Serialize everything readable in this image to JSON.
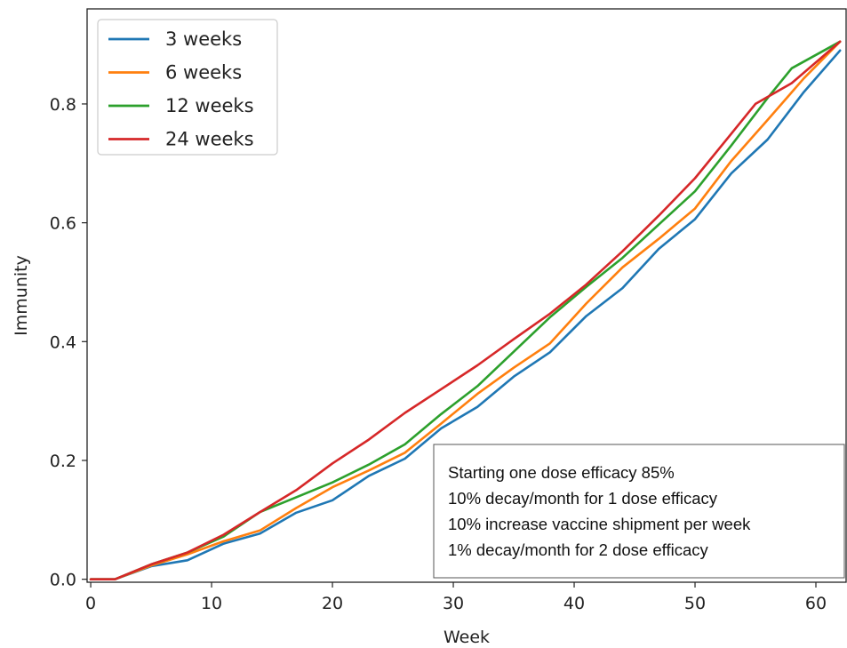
{
  "chart_data": {
    "type": "line",
    "xlabel": "Week",
    "ylabel": "Immunity",
    "xlim": [
      -0.3,
      62.5
    ],
    "ylim": [
      -0.005,
      0.96
    ],
    "xticks": [
      0,
      10,
      20,
      30,
      40,
      50,
      60
    ],
    "yticks": [
      0.0,
      0.2,
      0.4,
      0.6,
      0.8
    ],
    "xtick_labels": [
      "0",
      "10",
      "20",
      "30",
      "40",
      "50",
      "60"
    ],
    "ytick_labels": [
      "0.0",
      "0.2",
      "0.4",
      "0.6",
      "0.8"
    ],
    "grid": false,
    "legend_position": "top-left",
    "series": [
      {
        "name": "3 weeks",
        "color": "#1f77b4",
        "x": [
          0,
          2,
          5,
          8,
          11,
          14,
          17,
          20,
          23,
          26,
          29,
          32,
          35,
          38,
          41,
          44,
          47,
          50,
          53,
          56,
          59,
          62
        ],
        "y": [
          0.0,
          0.0,
          0.022,
          0.032,
          0.06,
          0.077,
          0.112,
          0.133,
          0.174,
          0.203,
          0.254,
          0.29,
          0.341,
          0.382,
          0.443,
          0.49,
          0.556,
          0.606,
          0.683,
          0.74,
          0.82,
          0.89
        ]
      },
      {
        "name": "6 weeks",
        "color": "#ff7f0e",
        "x": [
          0,
          2,
          5,
          8,
          11,
          14,
          17,
          20,
          23,
          26,
          29,
          32,
          35,
          38,
          41,
          44,
          47,
          50,
          53,
          56,
          59,
          62
        ],
        "y": [
          0.0,
          0.0,
          0.023,
          0.042,
          0.064,
          0.082,
          0.12,
          0.155,
          0.183,
          0.213,
          0.262,
          0.312,
          0.356,
          0.397,
          0.464,
          0.525,
          0.573,
          0.624,
          0.704,
          0.773,
          0.843,
          0.905
        ]
      },
      {
        "name": "12 weeks",
        "color": "#2ca02c",
        "x": [
          0,
          2,
          5,
          8,
          11,
          14,
          17,
          20,
          23,
          26,
          29,
          32,
          35,
          38,
          41,
          44,
          47,
          50,
          53,
          56,
          58,
          62
        ],
        "y": [
          0.0,
          0.0,
          0.025,
          0.045,
          0.072,
          0.113,
          0.138,
          0.163,
          0.193,
          0.227,
          0.278,
          0.325,
          0.383,
          0.441,
          0.492,
          0.541,
          0.597,
          0.653,
          0.73,
          0.81,
          0.86,
          0.905
        ]
      },
      {
        "name": "24 weeks",
        "color": "#d62728",
        "x": [
          0,
          2,
          5,
          8,
          11,
          14,
          17,
          20,
          23,
          26,
          29,
          32,
          35,
          38,
          41,
          44,
          47,
          50,
          53,
          55,
          58,
          62
        ],
        "y": [
          0.0,
          0.0,
          0.025,
          0.045,
          0.075,
          0.113,
          0.15,
          0.195,
          0.235,
          0.28,
          0.32,
          0.36,
          0.404,
          0.447,
          0.496,
          0.552,
          0.612,
          0.675,
          0.75,
          0.8,
          0.835,
          0.905
        ]
      }
    ],
    "annotation": {
      "lines": [
        "Starting one dose efficacy 85%",
        "10% decay/month for 1 dose efficacy",
        "10% increase vaccine shipment per week",
        "1% decay/month for 2 dose efficacy"
      ],
      "position": "bottom-right"
    }
  }
}
